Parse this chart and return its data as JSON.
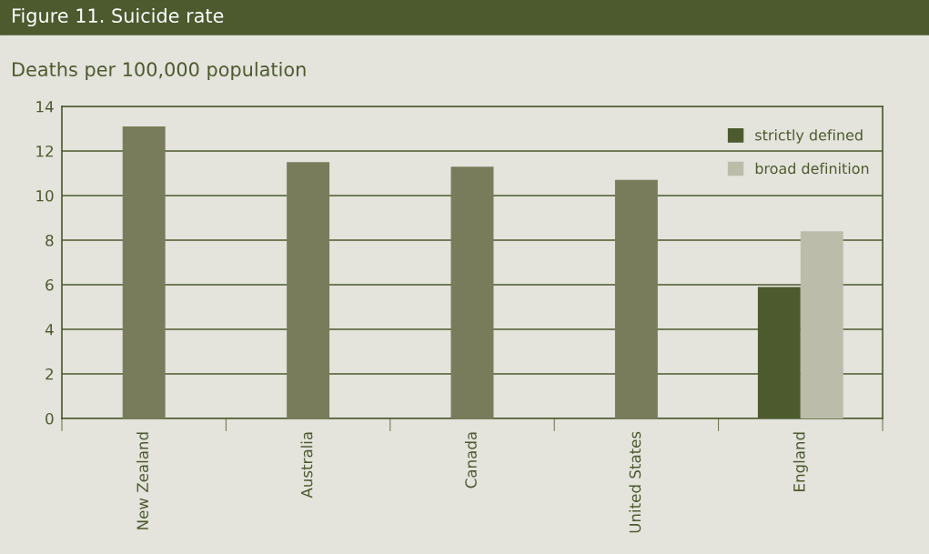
{
  "chart_data": {
    "type": "bar",
    "title": "Figure 11. Suicide rate",
    "subtitle": "Deaths per 100,000 population",
    "categories": [
      "New Zealand",
      "Australia",
      "Canada",
      "United States",
      "England"
    ],
    "series": [
      {
        "color": "#787c5a",
        "values": [
          13.1,
          11.5,
          11.3,
          10.7,
          null
        ]
      },
      {
        "name": "strictly defined",
        "color": "#4c5a2e",
        "values": [
          null,
          null,
          null,
          null,
          5.9
        ]
      },
      {
        "name": "broad definition",
        "color": "#bbbdaa",
        "values": [
          null,
          null,
          null,
          null,
          8.4
        ]
      }
    ],
    "ylim": [
      0,
      14
    ],
    "yticks": [
      0,
      2,
      4,
      6,
      8,
      10,
      12,
      14
    ],
    "grid": "y",
    "legend": "top right"
  }
}
